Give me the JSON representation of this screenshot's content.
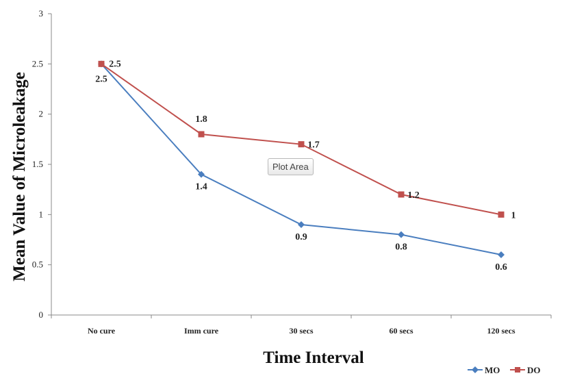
{
  "chart_data": {
    "type": "line",
    "categories": [
      "No cure",
      "Imm cure",
      "30 secs",
      "60 secs",
      "120 secs"
    ],
    "series": [
      {
        "name": "MO",
        "values": [
          2.5,
          1.4,
          0.9,
          0.8,
          0.6
        ],
        "color": "#4a7ebf",
        "marker": "diamond"
      },
      {
        "name": "DO",
        "values": [
          2.5,
          1.8,
          1.7,
          1.2,
          1
        ],
        "color": "#c0504d",
        "marker": "square"
      }
    ],
    "xlabel": "Time Interval",
    "ylabel": "Mean Value of Microleakage",
    "ylim": [
      0,
      3
    ],
    "yticks": [
      "0",
      "0.5",
      "1",
      "1.5",
      "2",
      "2.5",
      "3"
    ],
    "data_labels": {
      "MO": [
        "2.5",
        "1.4",
        "0.9",
        "0.8",
        "0.6"
      ],
      "DO": [
        "2.5",
        "1.8",
        "1.7",
        "1.2",
        "1"
      ]
    },
    "grid": false,
    "legend": "bottom-right"
  },
  "tooltip": {
    "text": "Plot Area"
  }
}
